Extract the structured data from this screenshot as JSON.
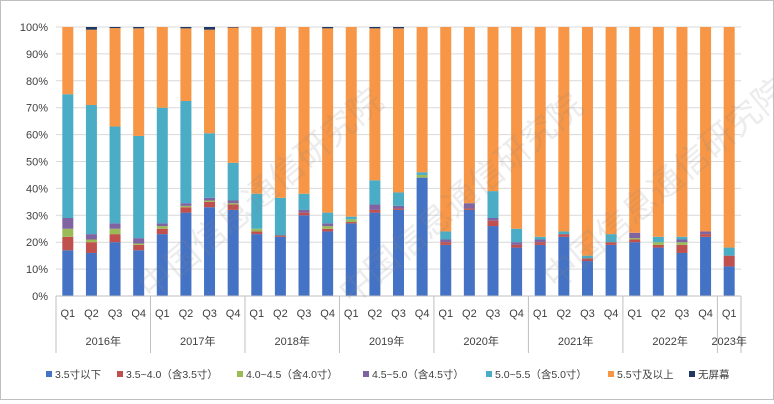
{
  "chart_data": {
    "type": "bar",
    "stacked": true,
    "y_axis": {
      "ticks": [
        "0%",
        "10%",
        "20%",
        "30%",
        "40%",
        "50%",
        "60%",
        "70%",
        "80%",
        "90%",
        "100%"
      ],
      "ylim": [
        0,
        100
      ]
    },
    "quarter_labels": [
      "Q1",
      "Q2",
      "Q3",
      "Q4",
      "Q1",
      "Q2",
      "Q3",
      "Q4",
      "Q1",
      "Q2",
      "Q3",
      "Q4",
      "Q1",
      "Q2",
      "Q3",
      "Q4",
      "Q1",
      "Q2",
      "Q3",
      "Q4",
      "Q1",
      "Q2",
      "Q3",
      "Q4",
      "Q1",
      "Q2",
      "Q3",
      "Q4",
      "Q1"
    ],
    "year_groups": [
      {
        "label": "2016年",
        "count": 4
      },
      {
        "label": "2017年",
        "count": 4
      },
      {
        "label": "2018年",
        "count": 4
      },
      {
        "label": "2019年",
        "count": 4
      },
      {
        "label": "2020年",
        "count": 4
      },
      {
        "label": "2021年",
        "count": 4
      },
      {
        "label": "2022年",
        "count": 4
      },
      {
        "label": "2023年",
        "count": 1
      }
    ],
    "series": [
      {
        "name": "3.5寸以下",
        "color": "#4472c4",
        "values": [
          17,
          16,
          20,
          17,
          23,
          31,
          33,
          32,
          23,
          22,
          30,
          24,
          27,
          31,
          32,
          44,
          19,
          32,
          26,
          18,
          19,
          22,
          13,
          19,
          20,
          18,
          16,
          22,
          11
        ]
      },
      {
        "name": "3.5~4.0（含3.5寸）",
        "color": "#c0504d",
        "values": [
          5,
          4,
          3,
          2,
          2,
          2,
          2,
          2,
          1,
          0.5,
          1,
          1,
          0.5,
          1,
          0.5,
          0,
          1,
          0.5,
          2,
          1,
          1,
          1,
          1,
          1,
          1,
          1,
          3,
          1,
          4
        ]
      },
      {
        "name": "4.0~4.5（含4.0寸）",
        "color": "#9bbb59",
        "values": [
          3,
          1,
          2,
          0.5,
          1,
          0.5,
          0.5,
          0.5,
          1,
          0,
          0,
          1,
          1,
          0,
          0,
          1,
          0,
          0,
          0,
          0,
          0,
          0,
          0,
          0,
          0.5,
          1,
          1,
          0,
          0
        ]
      },
      {
        "name": "4.5~5.0（含4.5寸）",
        "color": "#8064a2",
        "values": [
          4,
          2,
          2,
          2,
          1,
          1,
          1,
          1,
          0,
          0,
          1,
          1,
          0,
          2,
          1,
          0,
          1,
          2,
          1,
          1,
          1,
          0,
          0,
          0,
          2,
          0,
          1,
          1,
          0
        ]
      },
      {
        "name": "5.0~5.5（含5.0寸）",
        "color": "#4bacc6",
        "values": [
          46,
          48,
          36,
          38,
          43,
          38,
          24,
          14,
          13,
          14,
          6,
          4,
          1,
          9,
          5,
          1,
          3,
          0,
          10,
          5,
          1,
          1,
          1,
          3,
          0,
          2,
          1,
          0,
          3
        ]
      },
      {
        "name": "5.5寸及以上",
        "color": "#f79646",
        "values": [
          25,
          28,
          36.6,
          40,
          30,
          27,
          38.5,
          50.3,
          62,
          63.5,
          62,
          68.5,
          70.5,
          56.5,
          61,
          54,
          76,
          65.5,
          61,
          75,
          78,
          76,
          85,
          77,
          76.5,
          78,
          78,
          76,
          82
        ]
      },
      {
        "name": "无屏幕",
        "color": "#1f3864",
        "values": [
          0,
          1,
          0.4,
          0.5,
          0,
          0.5,
          1,
          0.2,
          0,
          0,
          0,
          0.5,
          0,
          0.5,
          0.5,
          0,
          0,
          0,
          0,
          0,
          0,
          0,
          0,
          0,
          0,
          0,
          0,
          0,
          0
        ]
      }
    ]
  },
  "watermark": "中国信息通信研究院"
}
